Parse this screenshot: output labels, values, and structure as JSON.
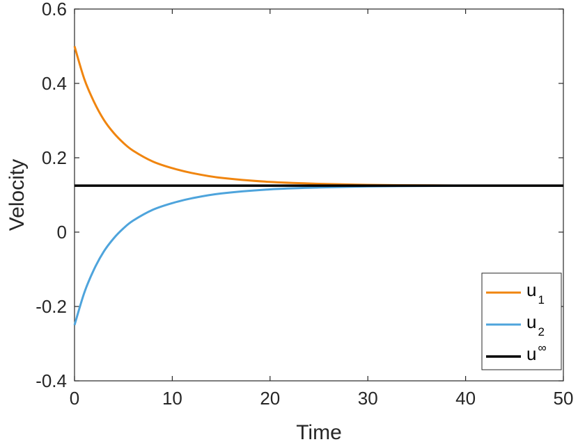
{
  "chart_data": {
    "type": "line",
    "xlabel": "Time",
    "ylabel": "Velocity",
    "xlim": [
      0,
      50
    ],
    "ylim": [
      -0.4,
      0.6
    ],
    "xticks": [
      0,
      10,
      20,
      30,
      40,
      50
    ],
    "yticks": [
      -0.4,
      -0.2,
      0,
      0.2,
      0.4,
      0.6
    ],
    "xtick_labels": [
      "0",
      "10",
      "20",
      "30",
      "40",
      "50"
    ],
    "ytick_labels": [
      "-0.4",
      "-0.2",
      "0",
      "0.2",
      "0.4",
      "0.6"
    ],
    "grid": false,
    "legend_position": "bottom-right",
    "x": [
      0,
      1,
      2,
      3,
      4,
      5,
      6,
      8,
      10,
      12,
      15,
      20,
      25,
      30,
      35,
      40,
      45,
      50
    ],
    "series": [
      {
        "name": "u",
        "name_sub": "1",
        "color": "#f0850f",
        "values": [
          0.5,
          0.412,
          0.35,
          0.302,
          0.267,
          0.24,
          0.219,
          0.19,
          0.172,
          0.159,
          0.146,
          0.135,
          0.13,
          0.127,
          0.126,
          0.125,
          0.125,
          0.125
        ]
      },
      {
        "name": "u",
        "name_sub": "2",
        "color": "#4ea4dc",
        "values": [
          -0.25,
          -0.163,
          -0.1,
          -0.052,
          -0.017,
          0.01,
          0.031,
          0.06,
          0.078,
          0.091,
          0.104,
          0.115,
          0.12,
          0.123,
          0.124,
          0.125,
          0.125,
          0.125
        ]
      },
      {
        "name": "u",
        "name_sup": "∞",
        "color": "#000000",
        "values": [
          0.125,
          0.125,
          0.125,
          0.125,
          0.125,
          0.125,
          0.125,
          0.125,
          0.125,
          0.125,
          0.125,
          0.125,
          0.125,
          0.125,
          0.125,
          0.125,
          0.125,
          0.125
        ]
      }
    ]
  }
}
